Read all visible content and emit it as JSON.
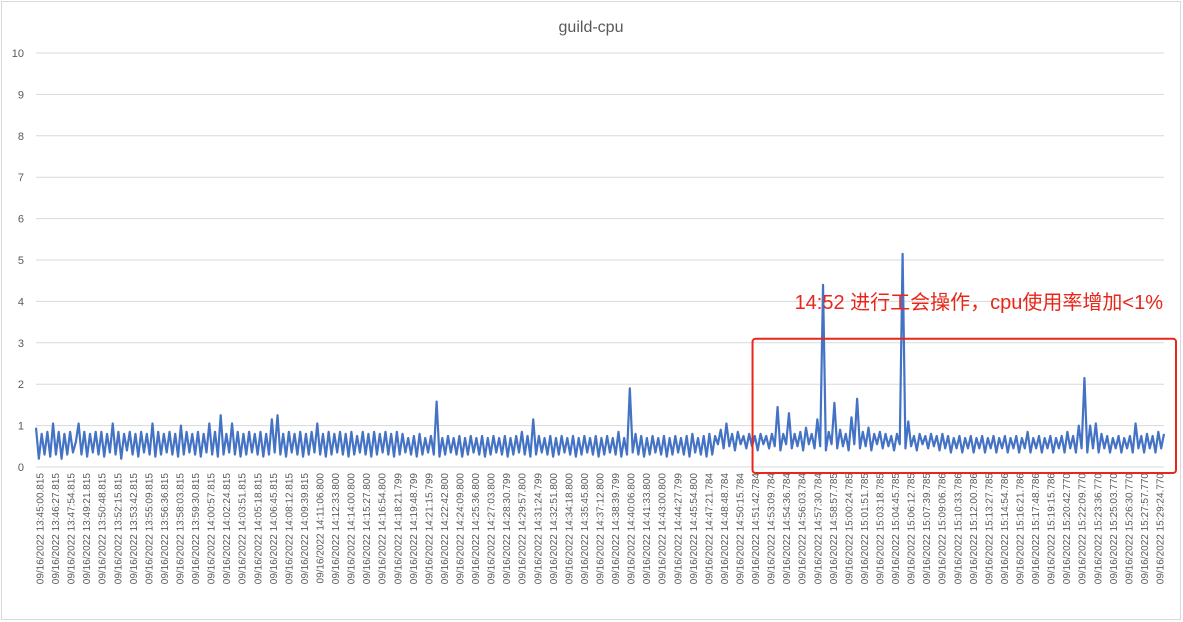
{
  "chart_data": {
    "type": "line",
    "title": "guild-cpu",
    "xlabel": "",
    "ylabel": "",
    "ylim": [
      0,
      10
    ],
    "yticks": [
      0,
      1,
      2,
      3,
      4,
      5,
      6,
      7,
      8,
      9,
      10
    ],
    "grid": true,
    "legend": "none",
    "line_color": "#4472c4",
    "x_tick_labels": [
      "09/16/2022 13:45:00.815",
      "09/16/2022 13:46:27.815",
      "09/16/2022 13:47:54.815",
      "09/16/2022 13:49:21.815",
      "09/16/2022 13:50:48.815",
      "09/16/2022 13:52:15.815",
      "09/16/2022 13:53:42.815",
      "09/16/2022 13:55:09.815",
      "09/16/2022 13:56:36.815",
      "09/16/2022 13:58:03.815",
      "09/16/2022 13:59:30.815",
      "09/16/2022 14:00:57.815",
      "09/16/2022 14:02:24.815",
      "09/16/2022 14:03:51.815",
      "09/16/2022 14:05:18.815",
      "09/16/2022 14:06:45.815",
      "09/16/2022 14:08:12.815",
      "09/16/2022 14:09:39.815",
      "09/16/2022 14:11:06.800",
      "09/16/2022 14:12:33.800",
      "09/16/2022 14:14:00.800",
      "09/16/2022 14:15:27.800",
      "09/16/2022 14:16:54.800",
      "09/16/2022 14:18:21.799",
      "09/16/2022 14:19:48.799",
      "09/16/2022 14:21:15.799",
      "09/16/2022 14:22:42.800",
      "09/16/2022 14:24:09.800",
      "09/16/2022 14:25:36.800",
      "09/16/2022 14:27:03.800",
      "09/16/2022 14:28:30.799",
      "09/16/2022 14:29:57.800",
      "09/16/2022 14:31:24.799",
      "09/16/2022 14:32:51.800",
      "09/16/2022 14:34:18.800",
      "09/16/2022 14:35:45.800",
      "09/16/2022 14:37:12.800",
      "09/16/2022 14:38:39.799",
      "09/16/2022 14:40:06.800",
      "09/16/2022 14:41:33.800",
      "09/16/2022 14:43:00.800",
      "09/16/2022 14:44:27.799",
      "09/16/2022 14:45:54.800",
      "09/16/2022 14:47:21.784",
      "09/16/2022 14:48:48.784",
      "09/16/2022 14:50:15.784",
      "09/16/2022 14:51:42.784",
      "09/16/2022 14:53:09.784",
      "09/16/2022 14:54:36.784",
      "09/16/2022 14:56:03.784",
      "09/16/2022 14:57:30.784",
      "09/16/2022 14:58:57.785",
      "09/16/2022 15:00:24.785",
      "09/16/2022 15:01:51.785",
      "09/16/2022 15:03:18.785",
      "09/16/2022 15:04:45.785",
      "09/16/2022 15:06:12.785",
      "09/16/2022 15:07:39.785",
      "09/16/2022 15:09:06.786",
      "09/16/2022 15:10:33.786",
      "09/16/2022 15:12:00.786",
      "09/16/2022 15:13:27.785",
      "09/16/2022 15:14:54.786",
      "09/16/2022 15:16:21.786",
      "09/16/2022 15:17:48.786",
      "09/16/2022 15:19:15.786",
      "09/16/2022 15:20:42.770",
      "09/16/2022 15:22:09.770",
      "09/16/2022 15:23:36.770",
      "09/16/2022 15:25:03.770",
      "09/16/2022 15:26:30.770",
      "09/16/2022 15:27:57.770",
      "09/16/2022 15:29:24.770"
    ],
    "series": [
      {
        "values": [
          0.95,
          0.2,
          0.8,
          0.3,
          0.85,
          0.25,
          1.05,
          0.3,
          0.85,
          0.2,
          0.8,
          0.3,
          0.85,
          0.35,
          0.6,
          1.05,
          0.3,
          0.85,
          0.25,
          0.8,
          0.35,
          0.85,
          0.3,
          0.85,
          0.25,
          0.8,
          0.35,
          1.05,
          0.3,
          0.85,
          0.2,
          0.8,
          0.4,
          0.85,
          0.3,
          0.8,
          0.25,
          0.85,
          0.35,
          0.8,
          0.3,
          1.05,
          0.25,
          0.85,
          0.3,
          0.8,
          0.35,
          0.85,
          0.3,
          0.8,
          0.25,
          1.0,
          0.3,
          0.85,
          0.35,
          0.8,
          0.3,
          0.85,
          0.25,
          0.8,
          0.35,
          1.05,
          0.3,
          0.85,
          0.25,
          1.25,
          0.3,
          0.8,
          0.35,
          1.05,
          0.3,
          0.85,
          0.25,
          0.8,
          0.3,
          0.85,
          0.35,
          0.8,
          0.3,
          0.85,
          0.25,
          0.8,
          0.3,
          1.15,
          0.35,
          1.25,
          0.3,
          0.8,
          0.25,
          0.85,
          0.35,
          0.8,
          0.3,
          0.85,
          0.25,
          0.8,
          0.3,
          0.85,
          0.35,
          1.05,
          0.3,
          0.8,
          0.25,
          0.85,
          0.3,
          0.8,
          0.35,
          0.85,
          0.3,
          0.8,
          0.25,
          0.85,
          0.3,
          0.75,
          0.35,
          0.85,
          0.3,
          0.8,
          0.25,
          0.85,
          0.3,
          0.8,
          0.35,
          0.85,
          0.3,
          0.8,
          0.25,
          0.85,
          0.3,
          0.8,
          0.35,
          0.7,
          0.3,
          0.75,
          0.25,
          0.8,
          0.3,
          0.7,
          0.35,
          0.75,
          0.3,
          1.58,
          0.25,
          0.7,
          0.3,
          0.75,
          0.35,
          0.7,
          0.3,
          0.75,
          0.25,
          0.7,
          0.3,
          0.75,
          0.35,
          0.7,
          0.3,
          0.75,
          0.25,
          0.7,
          0.3,
          0.75,
          0.35,
          0.7,
          0.3,
          0.75,
          0.25,
          0.7,
          0.3,
          0.75,
          0.35,
          0.85,
          0.3,
          0.75,
          0.25,
          1.15,
          0.3,
          0.75,
          0.35,
          0.7,
          0.3,
          0.75,
          0.25,
          0.7,
          0.3,
          0.75,
          0.35,
          0.7,
          0.3,
          0.75,
          0.25,
          0.7,
          0.3,
          0.75,
          0.35,
          0.7,
          0.3,
          0.75,
          0.25,
          0.7,
          0.3,
          0.75,
          0.35,
          0.7,
          0.3,
          0.85,
          0.25,
          0.7,
          0.3,
          1.9,
          0.35,
          0.8,
          0.3,
          0.75,
          0.25,
          0.7,
          0.3,
          0.75,
          0.35,
          0.7,
          0.3,
          0.75,
          0.25,
          0.7,
          0.3,
          0.75,
          0.35,
          0.7,
          0.3,
          0.75,
          0.25,
          0.8,
          0.35,
          0.7,
          0.3,
          0.75,
          0.25,
          0.8,
          0.3,
          0.75,
          0.55,
          0.9,
          0.45,
          1.05,
          0.5,
          0.8,
          0.4,
          0.85,
          0.55,
          0.75,
          0.45,
          0.8,
          0.5,
          0.75,
          0.4,
          0.8,
          0.55,
          0.75,
          0.45,
          0.8,
          0.5,
          1.45,
          0.4,
          0.8,
          0.55,
          1.3,
          0.45,
          0.8,
          0.5,
          0.85,
          0.4,
          0.95,
          0.55,
          0.8,
          0.45,
          1.15,
          0.5,
          4.4,
          0.4,
          0.85,
          0.55,
          1.55,
          0.45,
          0.9,
          0.5,
          0.8,
          0.4,
          1.2,
          0.55,
          1.65,
          0.45,
          0.85,
          0.5,
          0.95,
          0.4,
          0.8,
          0.55,
          0.85,
          0.45,
          0.8,
          0.5,
          0.75,
          0.4,
          0.8,
          0.55,
          5.15,
          0.45,
          1.1,
          0.5,
          0.75,
          0.4,
          0.8,
          0.55,
          0.75,
          0.45,
          0.8,
          0.5,
          0.75,
          0.4,
          0.8,
          0.45,
          0.75,
          0.35,
          0.7,
          0.45,
          0.75,
          0.35,
          0.7,
          0.45,
          0.75,
          0.35,
          0.7,
          0.45,
          0.75,
          0.35,
          0.7,
          0.45,
          0.75,
          0.35,
          0.7,
          0.45,
          0.75,
          0.35,
          0.7,
          0.45,
          0.75,
          0.35,
          0.7,
          0.45,
          0.85,
          0.35,
          0.7,
          0.45,
          0.75,
          0.35,
          0.7,
          0.45,
          0.75,
          0.35,
          0.7,
          0.45,
          0.75,
          0.35,
          0.85,
          0.45,
          0.75,
          0.35,
          1.0,
          0.45,
          2.15,
          0.35,
          1.0,
          0.45,
          1.05,
          0.35,
          0.8,
          0.45,
          0.75,
          0.35,
          0.7,
          0.45,
          0.75,
          0.35,
          0.7,
          0.45,
          0.75,
          0.35,
          1.05,
          0.45,
          0.75,
          0.35,
          0.8,
          0.45,
          0.75,
          0.35,
          0.85,
          0.45,
          0.8
        ]
      }
    ],
    "annotations": [
      {
        "text": "14:52 进行工会操作，cpu使用率增加<1%",
        "color": "#e8261a",
        "box_x_range": [
          "09/16/2022 14:51:42.784",
          "09/16/2022 15:29:24.770"
        ],
        "box_y_range": [
          0,
          3
        ]
      }
    ]
  }
}
